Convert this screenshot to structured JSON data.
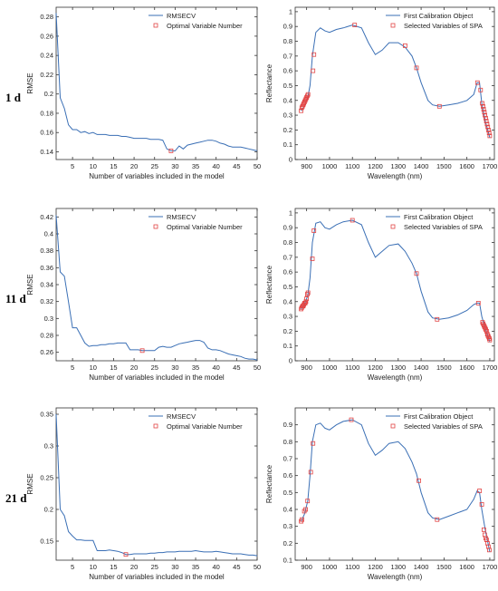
{
  "rows": [
    {
      "label": "1 d"
    },
    {
      "label": "11 d"
    },
    {
      "label": "21 d"
    }
  ],
  "colors": {
    "line": "#3a6fb5",
    "marker": "#e24444",
    "axis": "#333333"
  },
  "chart_data": [
    {
      "type": "line",
      "xlabel": "Number of variables included in the model",
      "ylabel": "RMSE",
      "xlim": [
        1,
        50
      ],
      "ylim": [
        0.132,
        0.29
      ],
      "xticks": [
        5,
        10,
        15,
        20,
        25,
        30,
        35,
        40,
        45,
        50
      ],
      "yticks": [
        0.14,
        0.16,
        0.18,
        0.2,
        0.22,
        0.24,
        0.26,
        0.28
      ],
      "legend": [
        "RMSECV",
        "Optimal Variable Number"
      ],
      "series": [
        {
          "name": "RMSECV",
          "x": [
            1,
            2,
            3,
            4,
            5,
            6,
            7,
            8,
            9,
            10,
            11,
            12,
            13,
            14,
            15,
            16,
            17,
            18,
            19,
            20,
            21,
            22,
            23,
            24,
            25,
            26,
            27,
            28,
            29,
            30,
            31,
            32,
            33,
            34,
            35,
            36,
            37,
            38,
            39,
            40,
            41,
            42,
            43,
            44,
            45,
            46,
            47,
            48,
            49,
            50
          ],
          "y": [
            0.284,
            0.196,
            0.185,
            0.168,
            0.163,
            0.163,
            0.16,
            0.161,
            0.159,
            0.16,
            0.158,
            0.158,
            0.158,
            0.157,
            0.157,
            0.157,
            0.156,
            0.156,
            0.155,
            0.154,
            0.154,
            0.154,
            0.154,
            0.153,
            0.153,
            0.153,
            0.152,
            0.143,
            0.141,
            0.141,
            0.146,
            0.143,
            0.147,
            0.148,
            0.149,
            0.15,
            0.151,
            0.152,
            0.152,
            0.151,
            0.149,
            0.148,
            0.146,
            0.145,
            0.145,
            0.145,
            0.144,
            0.143,
            0.142,
            0.141
          ]
        },
        {
          "name": "Optimal Variable Number",
          "x": [
            29
          ],
          "y": [
            0.141
          ]
        }
      ]
    },
    {
      "type": "line",
      "xlabel": "Wavelength (nm)",
      "ylabel": "Reflectance",
      "xlim": [
        850,
        1720
      ],
      "ylim": [
        0,
        1.03
      ],
      "xticks": [
        900,
        1000,
        1100,
        1200,
        1300,
        1400,
        1500,
        1600,
        1700
      ],
      "yticks": [
        0,
        0.1,
        0.2,
        0.3,
        0.4,
        0.5,
        0.6,
        0.7,
        0.8,
        0.9,
        1
      ],
      "legend": [
        "First Calibration Object",
        "Selected Variables of SPA"
      ],
      "series": [
        {
          "name": "First Calibration Object",
          "x": [
            876,
            890,
            905,
            915,
            925,
            940,
            960,
            980,
            1000,
            1030,
            1060,
            1100,
            1140,
            1170,
            1200,
            1230,
            1260,
            1300,
            1330,
            1360,
            1380,
            1400,
            1430,
            1450,
            1480,
            1520,
            1560,
            1600,
            1630,
            1645,
            1655,
            1665,
            1680,
            1700
          ],
          "y": [
            0.33,
            0.36,
            0.42,
            0.5,
            0.7,
            0.86,
            0.89,
            0.87,
            0.86,
            0.88,
            0.89,
            0.91,
            0.89,
            0.79,
            0.71,
            0.74,
            0.79,
            0.79,
            0.76,
            0.7,
            0.62,
            0.52,
            0.4,
            0.37,
            0.36,
            0.37,
            0.38,
            0.4,
            0.44,
            0.52,
            0.52,
            0.38,
            0.26,
            0.15
          ]
        },
        {
          "name": "Selected Variables of SPA",
          "x": [
            876,
            879,
            882,
            885,
            888,
            891,
            894,
            897,
            900,
            903,
            906,
            928,
            932,
            1110,
            1330,
            1380,
            1480,
            1646,
            1660,
            1667,
            1670,
            1673,
            1676,
            1679,
            1682,
            1685,
            1688,
            1691,
            1694,
            1697,
            1700
          ],
          "y": [
            0.33,
            0.35,
            0.36,
            0.37,
            0.38,
            0.39,
            0.4,
            0.41,
            0.42,
            0.43,
            0.44,
            0.6,
            0.71,
            0.91,
            0.77,
            0.62,
            0.36,
            0.52,
            0.47,
            0.38,
            0.36,
            0.34,
            0.32,
            0.3,
            0.28,
            0.26,
            0.24,
            0.22,
            0.2,
            0.18,
            0.16
          ]
        }
      ]
    },
    {
      "type": "line",
      "xlabel": "Number of variables included in the model",
      "ylabel": "RMSE",
      "xlim": [
        1,
        50
      ],
      "ylim": [
        0.25,
        0.43
      ],
      "xticks": [
        5,
        10,
        15,
        20,
        25,
        30,
        35,
        40,
        45,
        50
      ],
      "yticks": [
        0.26,
        0.28,
        0.3,
        0.32,
        0.34,
        0.36,
        0.38,
        0.4,
        0.42
      ],
      "legend": [
        "RMSECV",
        "Optimal Variable Number"
      ],
      "series": [
        {
          "name": "RMSECV",
          "x": [
            1,
            2,
            3,
            4,
            5,
            6,
            7,
            8,
            9,
            10,
            11,
            12,
            13,
            14,
            15,
            16,
            17,
            18,
            19,
            20,
            21,
            22,
            23,
            24,
            25,
            26,
            27,
            28,
            29,
            30,
            31,
            32,
            33,
            34,
            35,
            36,
            37,
            38,
            39,
            40,
            41,
            42,
            43,
            44,
            45,
            46,
            47,
            48,
            49,
            50
          ],
          "y": [
            0.422,
            0.355,
            0.35,
            0.32,
            0.289,
            0.289,
            0.28,
            0.271,
            0.267,
            0.268,
            0.268,
            0.269,
            0.269,
            0.27,
            0.27,
            0.271,
            0.271,
            0.271,
            0.263,
            0.263,
            0.263,
            0.262,
            0.262,
            0.262,
            0.262,
            0.266,
            0.267,
            0.266,
            0.266,
            0.268,
            0.27,
            0.271,
            0.272,
            0.273,
            0.274,
            0.274,
            0.272,
            0.265,
            0.263,
            0.263,
            0.262,
            0.26,
            0.258,
            0.257,
            0.256,
            0.255,
            0.253,
            0.252,
            0.252,
            0.251
          ]
        },
        {
          "name": "Optimal Variable Number",
          "x": [
            22
          ],
          "y": [
            0.262
          ]
        }
      ]
    },
    {
      "type": "line",
      "xlabel": "Wavelength (nm)",
      "ylabel": "Reflectance",
      "xlim": [
        850,
        1720
      ],
      "ylim": [
        0,
        1.03
      ],
      "xticks": [
        900,
        1000,
        1100,
        1200,
        1300,
        1400,
        1500,
        1600,
        1700
      ],
      "yticks": [
        0,
        0.1,
        0.2,
        0.3,
        0.4,
        0.5,
        0.6,
        0.7,
        0.8,
        0.9,
        1
      ],
      "legend": [
        "First Calibration Object",
        "Selected Variables of SPA"
      ],
      "series": [
        {
          "name": "First Calibration Object",
          "x": [
            876,
            890,
            905,
            915,
            925,
            940,
            960,
            980,
            1000,
            1030,
            1060,
            1100,
            1140,
            1170,
            1200,
            1230,
            1260,
            1300,
            1330,
            1360,
            1380,
            1400,
            1430,
            1450,
            1480,
            1520,
            1560,
            1600,
            1630,
            1645,
            1655,
            1665,
            1680,
            1700
          ],
          "y": [
            0.35,
            0.38,
            0.44,
            0.56,
            0.8,
            0.93,
            0.94,
            0.9,
            0.89,
            0.92,
            0.94,
            0.95,
            0.92,
            0.8,
            0.7,
            0.74,
            0.78,
            0.79,
            0.74,
            0.66,
            0.59,
            0.47,
            0.33,
            0.29,
            0.28,
            0.29,
            0.31,
            0.34,
            0.38,
            0.39,
            0.39,
            0.3,
            0.22,
            0.13
          ]
        },
        {
          "name": "Selected Variables of SPA",
          "x": [
            876,
            879,
            882,
            885,
            888,
            891,
            894,
            897,
            900,
            903,
            906,
            925,
            932,
            1100,
            1380,
            1470,
            1650,
            1668,
            1671,
            1674,
            1677,
            1680,
            1683,
            1686,
            1689,
            1692,
            1695,
            1698,
            1700
          ],
          "y": [
            0.35,
            0.36,
            0.37,
            0.37,
            0.38,
            0.39,
            0.39,
            0.4,
            0.42,
            0.45,
            0.46,
            0.69,
            0.88,
            0.95,
            0.59,
            0.28,
            0.39,
            0.26,
            0.25,
            0.24,
            0.23,
            0.22,
            0.21,
            0.2,
            0.18,
            0.17,
            0.16,
            0.15,
            0.14
          ]
        }
      ]
    },
    {
      "type": "line",
      "xlabel": "Number of variables included in the model",
      "ylabel": "RMSE",
      "xlim": [
        1,
        50
      ],
      "ylim": [
        0.12,
        0.36
      ],
      "xticks": [
        5,
        10,
        15,
        20,
        25,
        30,
        35,
        40,
        45,
        50
      ],
      "yticks": [
        0.15,
        0.2,
        0.25,
        0.3,
        0.35
      ],
      "legend": [
        "RMSECV",
        "Optimal Variable Number"
      ],
      "series": [
        {
          "name": "RMSECV",
          "x": [
            1,
            2,
            3,
            4,
            5,
            6,
            7,
            8,
            9,
            10,
            11,
            12,
            13,
            14,
            15,
            16,
            17,
            18,
            19,
            20,
            21,
            22,
            23,
            24,
            25,
            26,
            27,
            28,
            29,
            30,
            31,
            32,
            33,
            34,
            35,
            36,
            37,
            38,
            39,
            40,
            41,
            42,
            43,
            44,
            45,
            46,
            47,
            48,
            49,
            50
          ],
          "y": [
            0.35,
            0.2,
            0.19,
            0.165,
            0.158,
            0.152,
            0.152,
            0.151,
            0.151,
            0.151,
            0.135,
            0.135,
            0.135,
            0.136,
            0.135,
            0.134,
            0.132,
            0.129,
            0.129,
            0.13,
            0.13,
            0.13,
            0.13,
            0.131,
            0.131,
            0.132,
            0.132,
            0.133,
            0.133,
            0.133,
            0.134,
            0.134,
            0.134,
            0.134,
            0.135,
            0.134,
            0.133,
            0.133,
            0.133,
            0.134,
            0.133,
            0.132,
            0.131,
            0.13,
            0.13,
            0.13,
            0.129,
            0.128,
            0.128,
            0.127
          ]
        },
        {
          "name": "Optimal Variable Number",
          "x": [
            18
          ],
          "y": [
            0.129
          ]
        }
      ]
    },
    {
      "type": "line",
      "xlabel": "Wavelength (nm)",
      "ylabel": "Reflectance",
      "xlim": [
        850,
        1720
      ],
      "ylim": [
        0.1,
        1.0
      ],
      "xticks": [
        900,
        1000,
        1100,
        1200,
        1300,
        1400,
        1500,
        1600,
        1700
      ],
      "yticks": [
        0.1,
        0.2,
        0.3,
        0.4,
        0.5,
        0.6,
        0.7,
        0.8,
        0.9
      ],
      "legend": [
        "First Calibration Object",
        "Selected Variables of SPA"
      ],
      "series": [
        {
          "name": "First Calibration Object",
          "x": [
            876,
            890,
            905,
            915,
            925,
            940,
            960,
            980,
            1000,
            1030,
            1060,
            1100,
            1140,
            1170,
            1200,
            1230,
            1260,
            1300,
            1330,
            1360,
            1380,
            1400,
            1430,
            1450,
            1480,
            1520,
            1560,
            1600,
            1630,
            1645,
            1655,
            1665,
            1680,
            1700
          ],
          "y": [
            0.33,
            0.37,
            0.45,
            0.6,
            0.8,
            0.9,
            0.91,
            0.88,
            0.87,
            0.9,
            0.92,
            0.93,
            0.9,
            0.79,
            0.72,
            0.75,
            0.79,
            0.8,
            0.76,
            0.68,
            0.61,
            0.5,
            0.38,
            0.35,
            0.34,
            0.36,
            0.38,
            0.4,
            0.46,
            0.51,
            0.5,
            0.4,
            0.28,
            0.15
          ]
        },
        {
          "name": "Selected Variables of SPA",
          "x": [
            876,
            880,
            890,
            896,
            904,
            918,
            928,
            1095,
            1390,
            1470,
            1655,
            1665,
            1674,
            1678,
            1682,
            1686,
            1690,
            1694,
            1698
          ],
          "y": [
            0.33,
            0.34,
            0.39,
            0.4,
            0.45,
            0.62,
            0.79,
            0.93,
            0.57,
            0.34,
            0.51,
            0.43,
            0.28,
            0.25,
            0.23,
            0.22,
            0.2,
            0.18,
            0.16
          ]
        }
      ]
    }
  ]
}
